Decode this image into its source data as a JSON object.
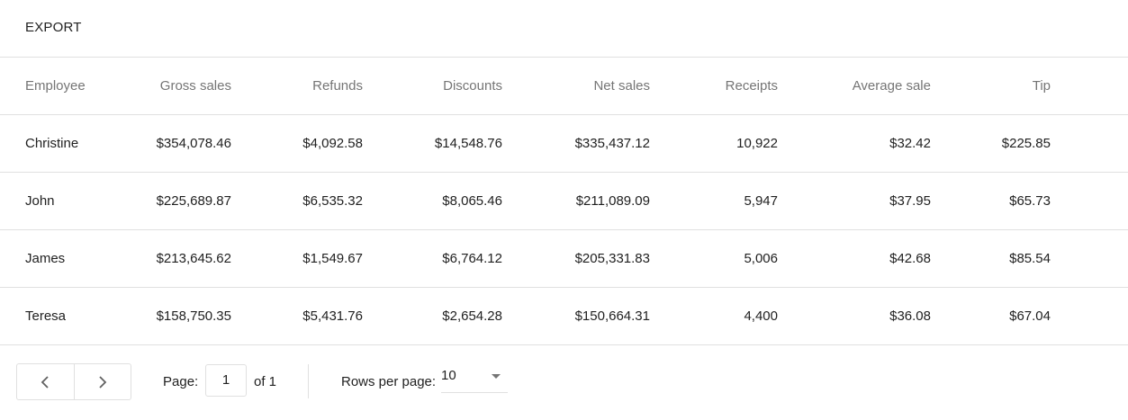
{
  "export_label": "EXPORT",
  "columns": [
    "Employee",
    "Gross sales",
    "Refunds",
    "Discounts",
    "Net sales",
    "Receipts",
    "Average sale",
    "Tip"
  ],
  "rows": [
    [
      "Christine",
      "$354,078.46",
      "$4,092.58",
      "$14,548.76",
      "$335,437.12",
      "10,922",
      "$32.42",
      "$225.85"
    ],
    [
      "John",
      "$225,689.87",
      "$6,535.32",
      "$8,065.46",
      "$211,089.09",
      "5,947",
      "$37.95",
      "$65.73"
    ],
    [
      "James",
      "$213,645.62",
      "$1,549.67",
      "$6,764.12",
      "$205,331.83",
      "5,006",
      "$42.68",
      "$85.54"
    ],
    [
      "Teresa",
      "$158,750.35",
      "$5,431.76",
      "$2,654.28",
      "$150,664.31",
      "4,400",
      "$36.08",
      "$67.04"
    ]
  ],
  "pagination": {
    "prev_icon": "chevron-left-icon",
    "next_icon": "chevron-right-icon",
    "page_label": "Page:",
    "page_value": "1",
    "of_label": "of 1",
    "rows_label": "Rows per page:",
    "rows_value": "10"
  }
}
